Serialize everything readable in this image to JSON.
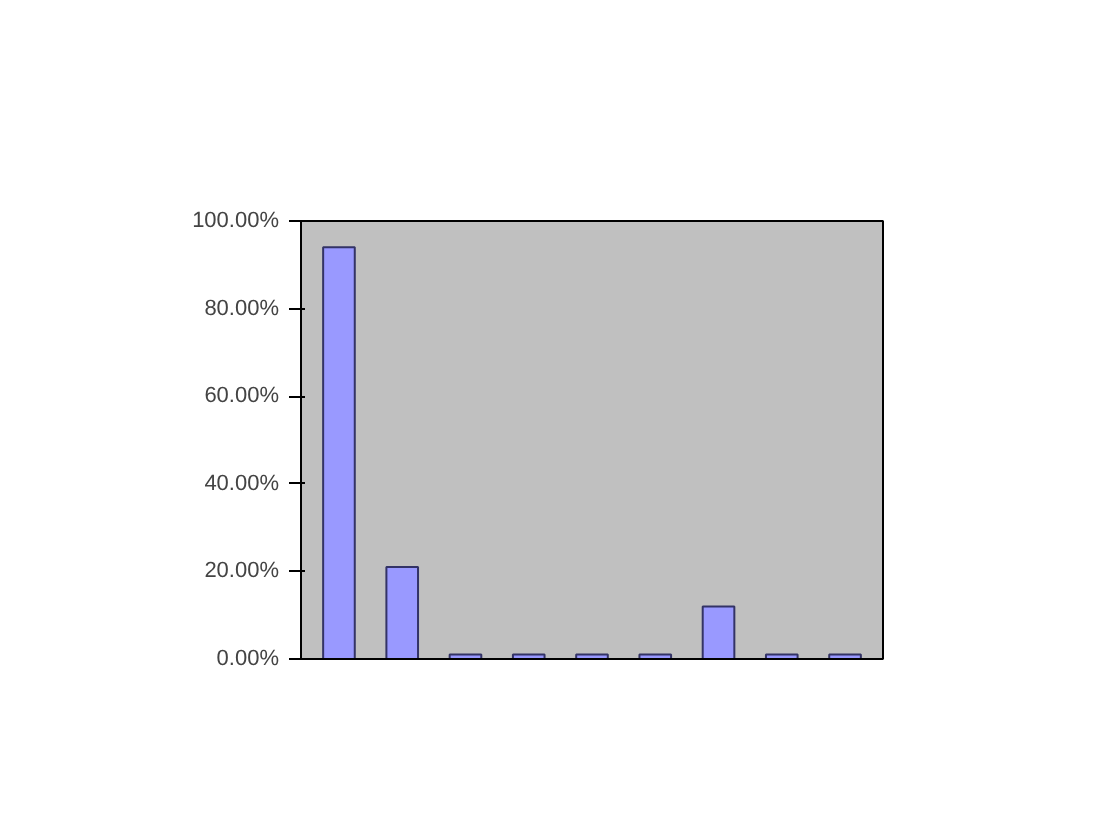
{
  "chart_data": {
    "type": "bar",
    "categories": [
      null,
      null,
      null,
      null,
      null,
      null,
      null,
      null,
      null
    ],
    "values": [
      94,
      21,
      1,
      1,
      1,
      1,
      12,
      1,
      1
    ],
    "color": "#9999ff",
    "ylim": [
      0,
      100
    ],
    "yticks": [
      {
        "value": 0,
        "label": "0.00%"
      },
      {
        "value": 20,
        "label": "20.00%"
      },
      {
        "value": 40,
        "label": "40.00%"
      },
      {
        "value": 60,
        "label": "60.00%"
      },
      {
        "value": 80,
        "label": "80.00%"
      },
      {
        "value": 100,
        "label": "100.00%"
      }
    ],
    "grid": false
  }
}
